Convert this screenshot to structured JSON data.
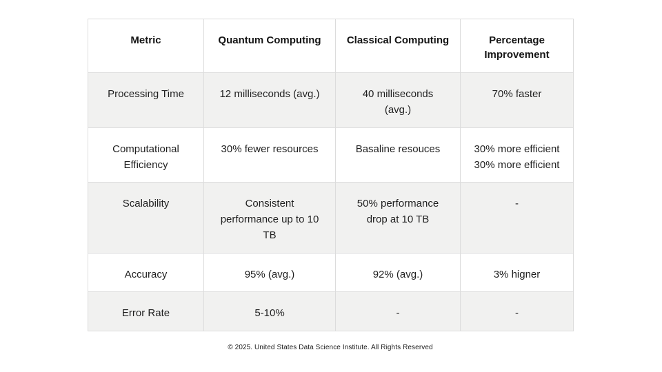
{
  "table": {
    "columns": [
      {
        "label": "Metric"
      },
      {
        "label": "Quantum Computing"
      },
      {
        "label": "Classical Computing"
      },
      {
        "label": "Percentage Improvement"
      }
    ],
    "rows": [
      {
        "metric": "Processing Time",
        "cells": [
          [
            "Processing Time"
          ],
          [
            "12 milliseconds (avg.)"
          ],
          [
            "40 milliseconds",
            "(avg.)"
          ],
          [
            "70% faster"
          ]
        ]
      },
      {
        "metric": "Computational Efficiency",
        "cells": [
          [
            "Computational",
            "Efficiency"
          ],
          [
            "30% fewer resources"
          ],
          [
            "Basaline resouces"
          ],
          [
            "30% more efficient",
            "30% more efficient"
          ]
        ]
      },
      {
        "metric": "Scalability",
        "cells": [
          [
            "Scalability"
          ],
          [
            "Consistent",
            "performance up to 10",
            "TB"
          ],
          [
            "50% performance",
            "drop at 10 TB"
          ],
          [
            "-"
          ]
        ]
      },
      {
        "metric": "Accuracy",
        "cells": [
          [
            "Accuracy"
          ],
          [
            "95% (avg.)"
          ],
          [
            "92% (avg.)"
          ],
          [
            "3% higner"
          ]
        ]
      },
      {
        "metric": "Error Rate",
        "cells": [
          [
            "Error Rate"
          ],
          [
            "5-10%"
          ],
          [
            "-"
          ],
          [
            "-"
          ]
        ]
      }
    ]
  },
  "footer": {
    "text": "© 2025. United States Data Science Institute. All Rights Reserved"
  },
  "colors": {
    "background": "#ffffff",
    "row_shade": "#f1f1f0",
    "border": "#dcdcdc",
    "text": "#1f1f1f"
  }
}
